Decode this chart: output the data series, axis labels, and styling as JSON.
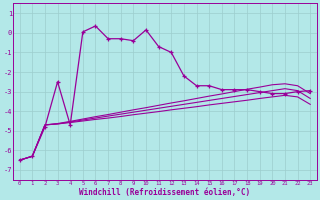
{
  "x": [
    0,
    1,
    2,
    3,
    4,
    5,
    6,
    7,
    8,
    9,
    10,
    11,
    12,
    13,
    14,
    15,
    16,
    17,
    18,
    19,
    20,
    21,
    22,
    23
  ],
  "line_main": [
    -6.5,
    -6.3,
    -4.8,
    -2.5,
    -4.7,
    0.05,
    0.35,
    -0.3,
    -0.3,
    -0.4,
    0.15,
    -0.7,
    -1.0,
    -2.2,
    -2.7,
    -2.7,
    -2.9,
    -2.9,
    -2.9,
    -3.0,
    -3.1,
    -3.1,
    -3.0,
    -2.95
  ],
  "line_ref1": [
    -6.5,
    -6.3,
    -4.7,
    -4.65,
    -4.58,
    -4.5,
    -4.42,
    -4.35,
    -4.27,
    -4.18,
    -4.1,
    -4.02,
    -3.93,
    -3.85,
    -3.77,
    -3.68,
    -3.6,
    -3.52,
    -3.44,
    -3.35,
    -3.27,
    -3.19,
    -3.27,
    -3.65
  ],
  "line_ref2": [
    -6.5,
    -6.3,
    -4.7,
    -4.65,
    -4.55,
    -4.45,
    -4.35,
    -4.25,
    -4.15,
    -4.05,
    -3.95,
    -3.85,
    -3.75,
    -3.65,
    -3.55,
    -3.45,
    -3.35,
    -3.25,
    -3.15,
    -3.05,
    -2.95,
    -2.85,
    -2.95,
    -3.35
  ],
  "line_ref3": [
    -6.5,
    -6.3,
    -4.7,
    -4.63,
    -4.52,
    -4.4,
    -4.28,
    -4.17,
    -4.05,
    -3.93,
    -3.82,
    -3.7,
    -3.58,
    -3.47,
    -3.35,
    -3.23,
    -3.12,
    -3.0,
    -2.88,
    -2.77,
    -2.65,
    -2.6,
    -2.7,
    -3.1
  ],
  "line_color": "#990099",
  "bg_color": "#b3e8e8",
  "grid_color": "#9dcece",
  "xlabel": "Windchill (Refroidissement éolien,°C)",
  "ylim": [
    -7.5,
    1.5
  ],
  "xlim": [
    -0.5,
    23.5
  ]
}
